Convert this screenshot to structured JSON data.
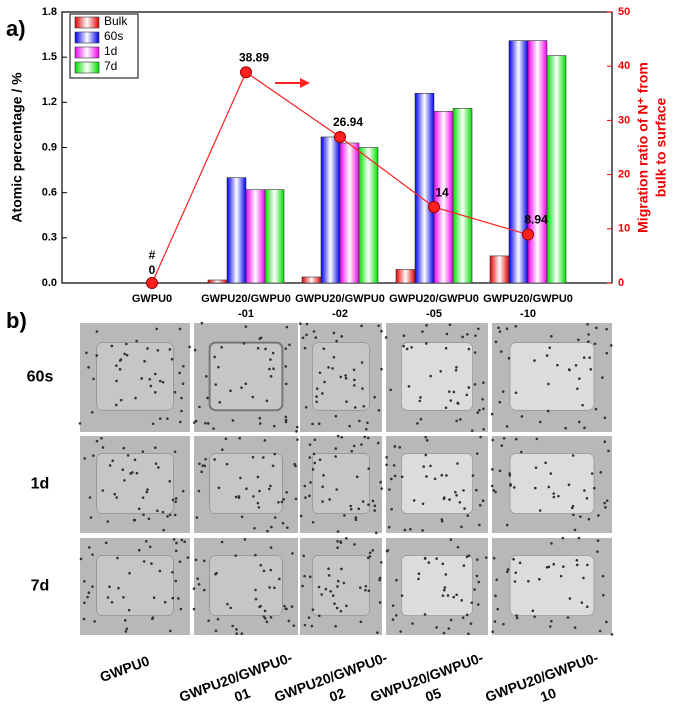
{
  "panel_a": "a)",
  "panel_b": "b)",
  "chart_data": {
    "type": "bar",
    "categories": [
      "GWPU0",
      "GWPU20/GWPU0\n-01",
      "GWPU20/GWPU0\n-02",
      "GWPU20/GWPU0\n-05",
      "GWPU20/GWPU0\n-10"
    ],
    "series": [
      {
        "name": "Bulk",
        "color": "#e00000",
        "values": [
          0,
          0.02,
          0.04,
          0.09,
          0.18
        ]
      },
      {
        "name": "60s",
        "color": "#0000ee",
        "values": [
          0,
          0.7,
          0.97,
          1.26,
          1.61
        ]
      },
      {
        "name": "1d",
        "color": "#ee00ee",
        "values": [
          0,
          0.62,
          0.93,
          1.14,
          1.61
        ]
      },
      {
        "name": "7d",
        "color": "#00dd00",
        "values": [
          0,
          0.62,
          0.9,
          1.16,
          1.51
        ]
      },
      {
        "type": "line",
        "axis": "y2",
        "color": "#ff2020",
        "values": [
          0,
          38.89,
          26.94,
          14,
          8.94
        ]
      }
    ],
    "annotation": "#",
    "ylabel": "Atomic percentage / %",
    "y2label": [
      "Migration ratio of N⁺ from",
      "bulk to surface"
    ],
    "ylim": [
      0,
      1.8
    ],
    "yticks": [
      {
        "value": 0,
        "label": "0.0"
      },
      0.3,
      0.6,
      0.9,
      1.2,
      1.5,
      1.8
    ],
    "y2lim": [
      0,
      50
    ],
    "y2ticks": [
      0,
      10,
      20,
      30,
      40,
      50
    ],
    "legend": "upper left"
  },
  "image_grid": {
    "rows": [
      "60s",
      "1d",
      "7d"
    ],
    "columns": [
      "GWPU0",
      "GWPU20/GWPU0-\n01",
      "GWPU20/GWPU0-\n02",
      "GWPU20/GWPU0-\n05",
      "GWPU20/GWPU0-\n10"
    ]
  }
}
